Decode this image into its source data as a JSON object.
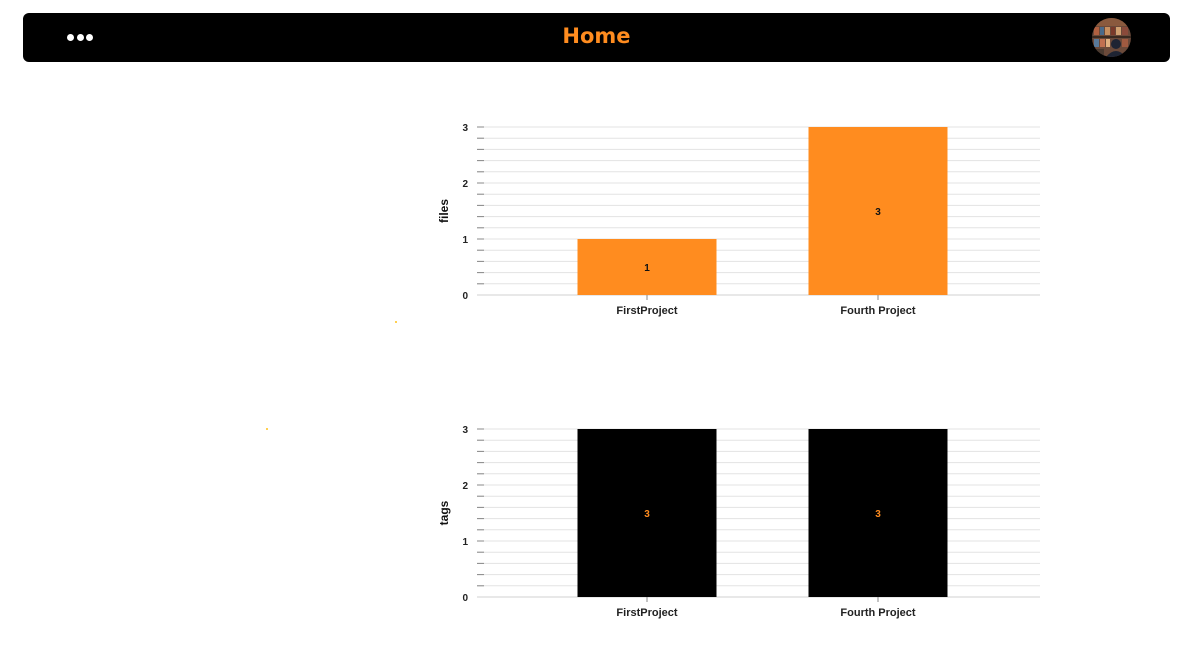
{
  "header": {
    "title": "Home",
    "menu_icon": "more-horizontal-icon",
    "avatar_icon": "user-avatar"
  },
  "colors": {
    "accent": "#ff8c1f",
    "topbar": "#000000",
    "bar_black": "#000000",
    "grid": "#dddddd"
  },
  "chart_data": [
    {
      "type": "bar",
      "categories": [
        "FirstProject",
        "Fourth Project"
      ],
      "values": [
        1,
        3
      ],
      "title": "",
      "xlabel": "",
      "ylabel": "files",
      "ylim": [
        0,
        3
      ],
      "yticks": [
        "0",
        "1",
        "2",
        "3"
      ],
      "data_labels": [
        "1",
        "3"
      ],
      "bar_color": "#ff8c1f",
      "label_color": "#111111",
      "grid": true
    },
    {
      "type": "bar",
      "categories": [
        "FirstProject",
        "Fourth Project"
      ],
      "values": [
        3,
        3
      ],
      "title": "",
      "xlabel": "",
      "ylabel": "tags",
      "ylim": [
        0,
        3
      ],
      "yticks": [
        "0",
        "1",
        "2",
        "3"
      ],
      "data_labels": [
        "3",
        "3"
      ],
      "bar_color": "#000000",
      "label_color": "#ff8c1f",
      "grid": true
    }
  ]
}
